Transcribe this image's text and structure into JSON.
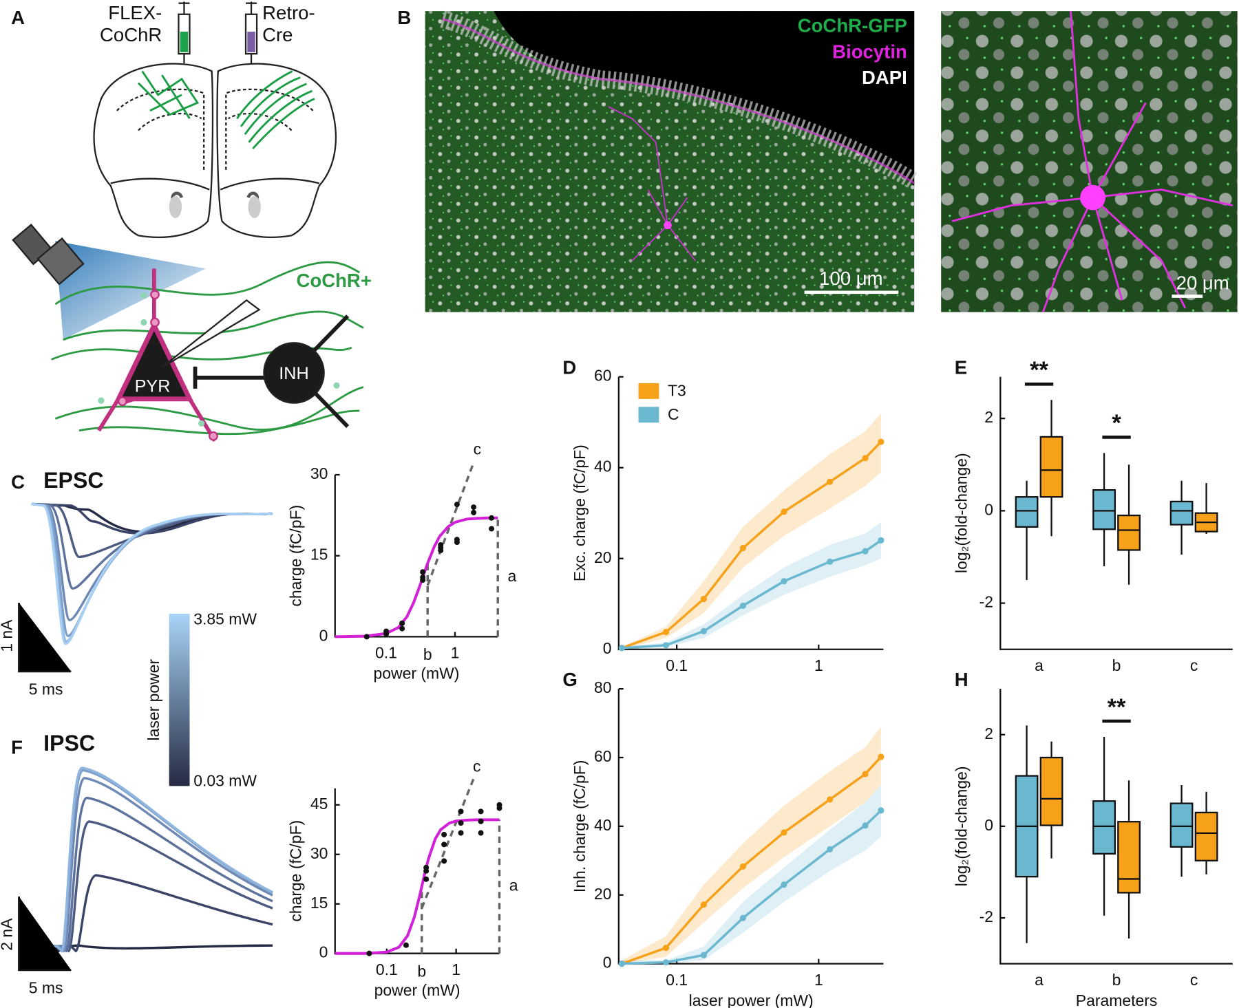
{
  "panel_labels": [
    "A",
    "B",
    "C",
    "D",
    "E",
    "F",
    "G",
    "H"
  ],
  "diagram": {
    "syringe_left": [
      "FLEX-",
      "CoChR"
    ],
    "syringe_right": [
      "Retro-",
      "Cre"
    ],
    "axon_label": "CoChR+",
    "pyr": "PYR",
    "inh": "INH"
  },
  "micrograph": {
    "channels": [
      {
        "name": "CoChR-GFP",
        "color": "#1fae4b"
      },
      {
        "name": "Biocytin",
        "color": "#e022e0"
      },
      {
        "name": "DAPI",
        "color": "#ffffff"
      }
    ],
    "scale_bars": [
      "100 μm",
      "20 μm"
    ]
  },
  "traces": {
    "epsc": {
      "title": "EPSC",
      "scale": [
        "1 nA",
        "5 ms"
      ]
    },
    "ipsc": {
      "title": "IPSC",
      "scale": [
        "2 nA",
        "5 ms"
      ]
    },
    "colorbar": {
      "label": "laser power",
      "max": "3.85 mW",
      "min": "0.03 mW",
      "colors": [
        "#a8d4f7",
        "#252a42"
      ]
    }
  },
  "chart_data": [
    {
      "type": "scatter",
      "x_label": "power (mW)",
      "y_label": "charge (fC/pF)",
      "xscale": "log",
      "xlim": [
        0.018,
        4.2
      ],
      "ylim": [
        0,
        30
      ],
      "xticks": [
        0.1,
        1
      ],
      "yticks": [
        0,
        15,
        30
      ],
      "color": "#111111",
      "x": [
        0.052,
        0.1,
        0.1,
        0.17,
        0.17,
        0.34,
        0.34,
        0.34,
        0.62,
        0.62,
        0.62,
        1.07,
        1.07,
        1.07,
        1.87,
        1.87,
        3.4,
        3.4
      ],
      "values": [
        0,
        1,
        0.5,
        1.5,
        2.5,
        10.5,
        11,
        12,
        16,
        16.5,
        17,
        24.5,
        18,
        17.5,
        24,
        23,
        22,
        20
      ],
      "fit": {
        "color": "#d21fd8",
        "x": [
          0.018,
          0.05,
          0.1,
          0.15,
          0.2,
          0.25,
          0.3,
          0.35,
          0.4,
          0.5,
          0.6,
          0.8,
          1,
          1.5,
          2,
          3,
          4.2
        ],
        "values": [
          0,
          0.1,
          0.6,
          1.7,
          3.7,
          6.3,
          9,
          11.5,
          13.6,
          16.7,
          18.6,
          20.4,
          21.2,
          21.8,
          21.9,
          22,
          22
        ]
      },
      "guides": [
        {
          "label": "b",
          "x": [
            0.4,
            0.4
          ],
          "y": [
            0,
            13.6
          ]
        },
        {
          "label": "a",
          "x": [
            4.2,
            4.2
          ],
          "y": [
            0,
            22
          ]
        },
        {
          "label": "c",
          "x": [
            0.4,
            1.9
          ],
          "y": [
            9.5,
            32.5
          ]
        }
      ]
    },
    {
      "type": "line",
      "y_label": "Exc. charge (fC/pF)",
      "xscale": "log",
      "xlim": [
        0.039,
        2.86
      ],
      "ylim": [
        0,
        60
      ],
      "xticks": [
        0.1,
        1
      ],
      "yticks": [
        0,
        20,
        40,
        60
      ],
      "legend": "upper left",
      "x": [
        0.041,
        0.084,
        0.155,
        0.293,
        0.57,
        1.2,
        2.13,
        2.75
      ],
      "series": [
        {
          "name": "T3",
          "color": "#f7a11a",
          "values": [
            0.3,
            3.8,
            11.1,
            22.3,
            30.3,
            36.9,
            42.1,
            45.7
          ],
          "lower": [
            0,
            2.5,
            8,
            18,
            25,
            31,
            36,
            39
          ],
          "upper": [
            0.5,
            5,
            15,
            27,
            35,
            43,
            48,
            52
          ]
        },
        {
          "name": "C",
          "color": "#6ab7d0",
          "values": [
            0.3,
            0.9,
            4,
            9.6,
            15,
            19.3,
            21.6,
            24
          ],
          "lower": [
            0,
            0.5,
            2.5,
            7.5,
            12,
            16,
            18.5,
            20
          ],
          "upper": [
            0.5,
            1.5,
            5.5,
            12,
            18,
            23,
            25.5,
            28
          ]
        }
      ]
    },
    {
      "type": "box",
      "y_label": "log₂(fold-change)",
      "categories": [
        "a",
        "b",
        "c"
      ],
      "ylim": [
        -3,
        2.9
      ],
      "yticks": [
        -2,
        0,
        2
      ],
      "series": [
        {
          "color": "#6ab7d0",
          "whisker_low": [
            -1.5,
            -1.2,
            -0.95
          ],
          "q1": [
            -0.35,
            -0.4,
            -0.3
          ],
          "median": [
            0,
            0,
            0
          ],
          "q3": [
            0.3,
            0.45,
            0.2
          ],
          "whisker_high": [
            0.65,
            1.25,
            0.65
          ]
        },
        {
          "color": "#f7a11a",
          "whisker_low": [
            -0.55,
            -1.6,
            -0.5
          ],
          "q1": [
            0.3,
            -0.85,
            -0.45
          ],
          "median": [
            0.88,
            -0.42,
            -0.25
          ],
          "q3": [
            1.6,
            -0.1,
            -0.05
          ],
          "whisker_high": [
            2.4,
            1,
            0.6
          ]
        }
      ],
      "annotations": [
        {
          "text": "**",
          "category": "a"
        },
        {
          "text": "*",
          "category": "b"
        }
      ]
    },
    {
      "type": "scatter",
      "x_label": "power (mW)",
      "y_label": "charge (fC/pF)",
      "xscale": "log",
      "xlim": [
        0.018,
        4.2
      ],
      "ylim": [
        0,
        50
      ],
      "xticks": [
        0.1,
        1
      ],
      "yticks": [
        0,
        15,
        30,
        45
      ],
      "color": "#111111",
      "x": [
        0.056,
        0.19,
        0.37,
        0.37,
        0.37,
        0.67,
        0.67,
        0.67,
        1.17,
        1.17,
        1.17,
        2.27,
        2.27,
        2.27,
        4.2,
        4.2
      ],
      "values": [
        0,
        2.5,
        26,
        25,
        22.5,
        36,
        33,
        28,
        43,
        39.5,
        36.5,
        43,
        40,
        36.5,
        45,
        44
      ],
      "fit": {
        "color": "#d21fd8",
        "x": [
          0.018,
          0.05,
          0.1,
          0.15,
          0.2,
          0.25,
          0.3,
          0.35,
          0.4,
          0.5,
          0.6,
          0.8,
          1,
          1.5,
          2,
          3,
          4.2
        ],
        "values": [
          0,
          0,
          0.4,
          1.9,
          5.4,
          11,
          17.7,
          23.9,
          28.7,
          34.7,
          37.5,
          39.5,
          40.1,
          40.4,
          40.5,
          40.5,
          40.5
        ]
      },
      "guides": [
        {
          "label": "b",
          "x": [
            0.32,
            0.32
          ],
          "y": [
            0,
            20.3
          ]
        },
        {
          "label": "a",
          "x": [
            4.2,
            4.2
          ],
          "y": [
            0,
            40.5
          ]
        },
        {
          "label": "c",
          "x": [
            0.32,
            1.79
          ],
          "y": [
            13.7,
            53
          ]
        }
      ]
    },
    {
      "type": "line",
      "x_label": "laser power (mW)",
      "y_label": "Inh. charge (fC/pF)",
      "xscale": "log",
      "xlim": [
        0.039,
        2.86
      ],
      "ylim": [
        0,
        80
      ],
      "xticks": [
        0.1,
        1
      ],
      "yticks": [
        0,
        20,
        40,
        60,
        80
      ],
      "x": [
        0.041,
        0.084,
        0.155,
        0.293,
        0.57,
        1.2,
        2.13,
        2.75
      ],
      "series": [
        {
          "color": "#f7a11a",
          "values": [
            0,
            4.6,
            17.2,
            28.3,
            38.2,
            47.8,
            55.2,
            60.2
          ],
          "lower": [
            0,
            2,
            12,
            22,
            31,
            40,
            47,
            52
          ],
          "upper": [
            1,
            8,
            23,
            35,
            46,
            56,
            63,
            69
          ]
        },
        {
          "color": "#6ab7d0",
          "values": [
            0,
            0.4,
            2.5,
            13.3,
            23,
            33.3,
            40.2,
            44.6
          ],
          "lower": [
            0,
            0,
            1,
            9,
            18,
            27,
            33,
            37
          ],
          "upper": [
            1,
            1,
            5,
            18,
            28,
            39,
            47,
            52
          ]
        }
      ]
    },
    {
      "type": "box",
      "x_label": "Parameters",
      "y_label": "log₂(fold-change)",
      "categories": [
        "a",
        "b",
        "c"
      ],
      "ylim": [
        -3,
        3
      ],
      "yticks": [
        -2,
        0,
        2
      ],
      "series": [
        {
          "color": "#6ab7d0",
          "whisker_low": [
            -2.55,
            -1.95,
            -1.1
          ],
          "q1": [
            -1.1,
            -0.6,
            -0.45
          ],
          "median": [
            0,
            0,
            0
          ],
          "q3": [
            1.1,
            0.55,
            0.5
          ],
          "whisker_high": [
            2.2,
            1.95,
            0.9
          ]
        },
        {
          "color": "#f7a11a",
          "whisker_low": [
            -0.7,
            -2.45,
            -1.05
          ],
          "q1": [
            0.02,
            -1.45,
            -0.75
          ],
          "median": [
            0.6,
            -1.15,
            -0.15
          ],
          "q3": [
            1.5,
            0.1,
            0.3
          ],
          "whisker_high": [
            1.85,
            1,
            0.75
          ]
        }
      ],
      "annotations": [
        {
          "text": "**",
          "category": "b"
        }
      ]
    }
  ]
}
